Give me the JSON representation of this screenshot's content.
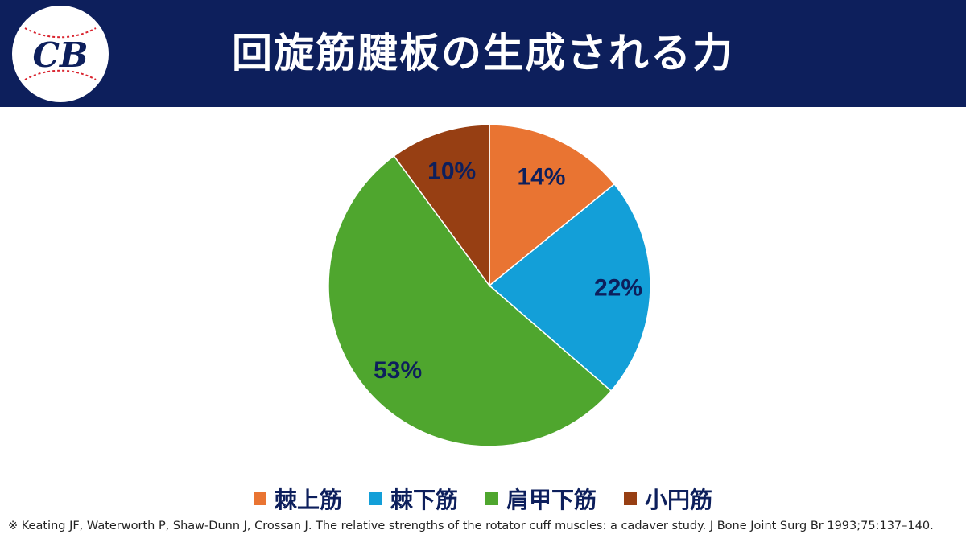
{
  "header": {
    "title": "回旋筋腱板の生成される力",
    "logo_text": "CB"
  },
  "chart_data": {
    "type": "pie",
    "title": "",
    "categories": [
      "棘上筋",
      "棘下筋",
      "肩甲下筋",
      "小円筋"
    ],
    "values": [
      14,
      22,
      53,
      10
    ],
    "labels": [
      "14%",
      "22%",
      "53%",
      "10%"
    ],
    "colors": [
      "#e97432",
      "#139fd8",
      "#4fa62e",
      "#973f13"
    ],
    "legend_position": "bottom"
  },
  "citation": "※ Keating JF, Waterworth P, Shaw-Dunn J, Crossan J. The relative strengths of the rotator cuff muscles: a cadaver study. J Bone Joint Surg Br 1993;75:137–140.",
  "colors": {
    "header_bg": "#0d1f5c",
    "label_text": "#0d1f5c"
  }
}
